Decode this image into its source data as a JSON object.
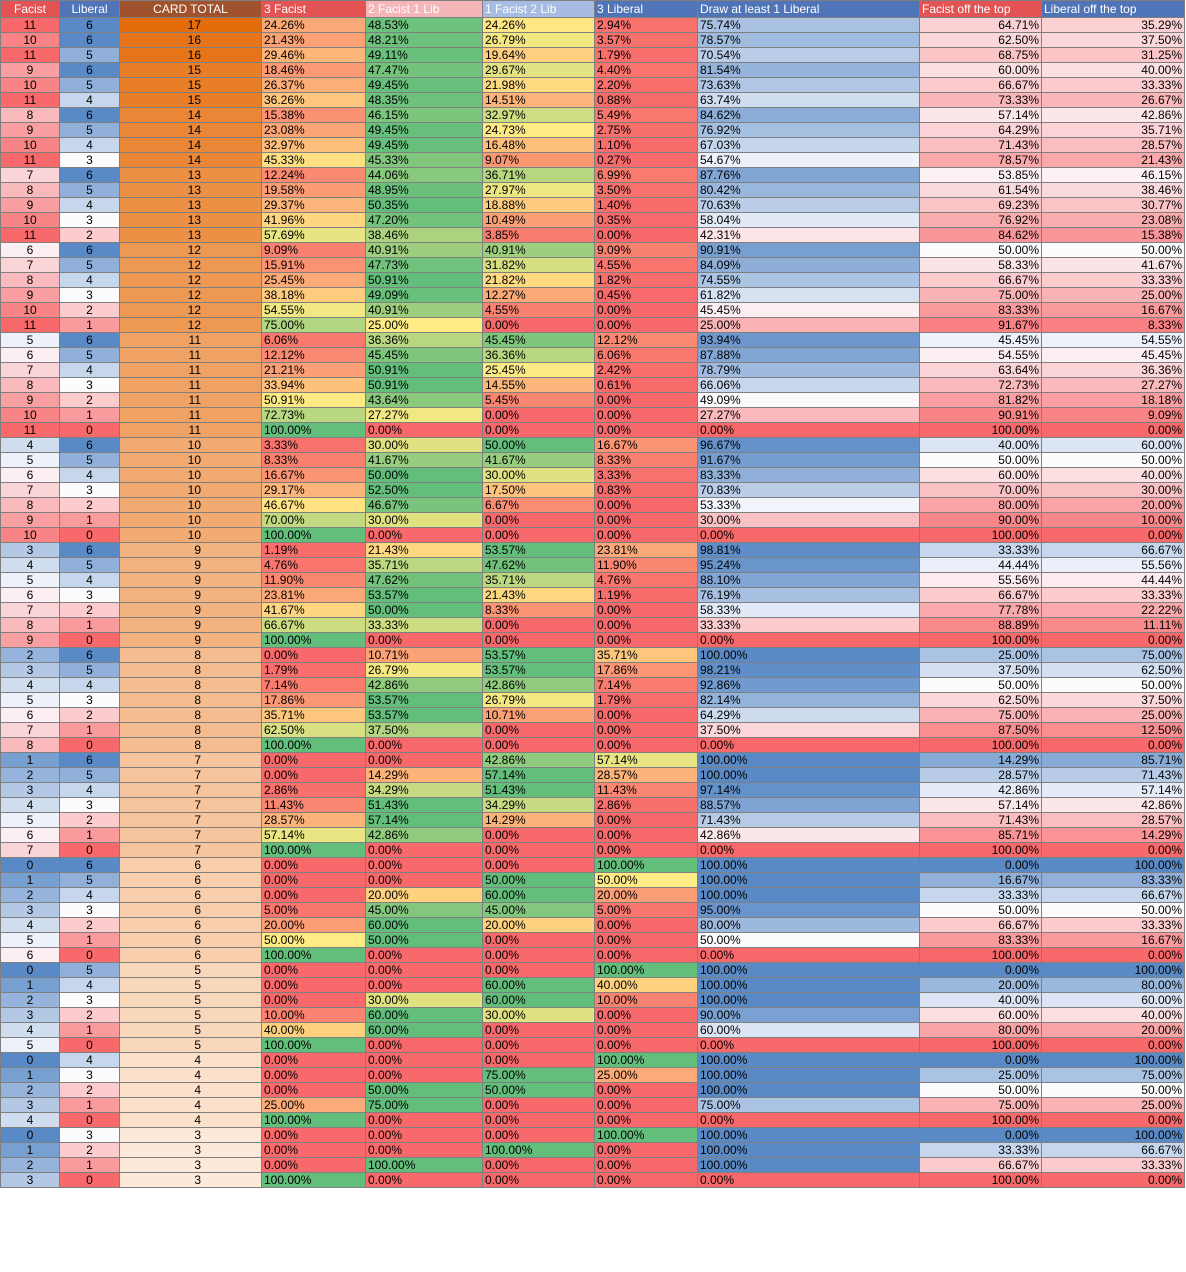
{
  "headers": [
    "Facist",
    "Liberal",
    "CARD TOTAL",
    "3 Facist",
    "2 Facist 1 Lib",
    "1 Facist 2 Lib",
    "3 Liberal",
    "Draw at least 1 Liberal",
    "Facist off the top",
    "Liberal off the top"
  ],
  "header_colors": [
    "#e35353",
    "#4f75b8",
    "#a0522d",
    "#e35353",
    "#f4b6b8",
    "#a7bce3",
    "#4f75b8",
    "#4f75b8",
    "#e35353",
    "#4f75b8"
  ],
  "rows": [
    [
      "11",
      "6",
      "17",
      "24.26%",
      "48.53%",
      "24.26%",
      "2.94%",
      "75.74%",
      "64.71%",
      "35.29%"
    ],
    [
      "10",
      "6",
      "16",
      "21.43%",
      "48.21%",
      "26.79%",
      "3.57%",
      "78.57%",
      "62.50%",
      "37.50%"
    ],
    [
      "11",
      "5",
      "16",
      "29.46%",
      "49.11%",
      "19.64%",
      "1.79%",
      "70.54%",
      "68.75%",
      "31.25%"
    ],
    [
      "9",
      "6",
      "15",
      "18.46%",
      "47.47%",
      "29.67%",
      "4.40%",
      "81.54%",
      "60.00%",
      "40.00%"
    ],
    [
      "10",
      "5",
      "15",
      "26.37%",
      "49.45%",
      "21.98%",
      "2.20%",
      "73.63%",
      "66.67%",
      "33.33%"
    ],
    [
      "11",
      "4",
      "15",
      "36.26%",
      "48.35%",
      "14.51%",
      "0.88%",
      "63.74%",
      "73.33%",
      "26.67%"
    ],
    [
      "8",
      "6",
      "14",
      "15.38%",
      "46.15%",
      "32.97%",
      "5.49%",
      "84.62%",
      "57.14%",
      "42.86%"
    ],
    [
      "9",
      "5",
      "14",
      "23.08%",
      "49.45%",
      "24.73%",
      "2.75%",
      "76.92%",
      "64.29%",
      "35.71%"
    ],
    [
      "10",
      "4",
      "14",
      "32.97%",
      "49.45%",
      "16.48%",
      "1.10%",
      "67.03%",
      "71.43%",
      "28.57%"
    ],
    [
      "11",
      "3",
      "14",
      "45.33%",
      "45.33%",
      "9.07%",
      "0.27%",
      "54.67%",
      "78.57%",
      "21.43%"
    ],
    [
      "7",
      "6",
      "13",
      "12.24%",
      "44.06%",
      "36.71%",
      "6.99%",
      "87.76%",
      "53.85%",
      "46.15%"
    ],
    [
      "8",
      "5",
      "13",
      "19.58%",
      "48.95%",
      "27.97%",
      "3.50%",
      "80.42%",
      "61.54%",
      "38.46%"
    ],
    [
      "9",
      "4",
      "13",
      "29.37%",
      "50.35%",
      "18.88%",
      "1.40%",
      "70.63%",
      "69.23%",
      "30.77%"
    ],
    [
      "10",
      "3",
      "13",
      "41.96%",
      "47.20%",
      "10.49%",
      "0.35%",
      "58.04%",
      "76.92%",
      "23.08%"
    ],
    [
      "11",
      "2",
      "13",
      "57.69%",
      "38.46%",
      "3.85%",
      "0.00%",
      "42.31%",
      "84.62%",
      "15.38%"
    ],
    [
      "6",
      "6",
      "12",
      "9.09%",
      "40.91%",
      "40.91%",
      "9.09%",
      "90.91%",
      "50.00%",
      "50.00%"
    ],
    [
      "7",
      "5",
      "12",
      "15.91%",
      "47.73%",
      "31.82%",
      "4.55%",
      "84.09%",
      "58.33%",
      "41.67%"
    ],
    [
      "8",
      "4",
      "12",
      "25.45%",
      "50.91%",
      "21.82%",
      "1.82%",
      "74.55%",
      "66.67%",
      "33.33%"
    ],
    [
      "9",
      "3",
      "12",
      "38.18%",
      "49.09%",
      "12.27%",
      "0.45%",
      "61.82%",
      "75.00%",
      "25.00%"
    ],
    [
      "10",
      "2",
      "12",
      "54.55%",
      "40.91%",
      "4.55%",
      "0.00%",
      "45.45%",
      "83.33%",
      "16.67%"
    ],
    [
      "11",
      "1",
      "12",
      "75.00%",
      "25.00%",
      "0.00%",
      "0.00%",
      "25.00%",
      "91.67%",
      "8.33%"
    ],
    [
      "5",
      "6",
      "11",
      "6.06%",
      "36.36%",
      "45.45%",
      "12.12%",
      "93.94%",
      "45.45%",
      "54.55%"
    ],
    [
      "6",
      "5",
      "11",
      "12.12%",
      "45.45%",
      "36.36%",
      "6.06%",
      "87.88%",
      "54.55%",
      "45.45%"
    ],
    [
      "7",
      "4",
      "11",
      "21.21%",
      "50.91%",
      "25.45%",
      "2.42%",
      "78.79%",
      "63.64%",
      "36.36%"
    ],
    [
      "8",
      "3",
      "11",
      "33.94%",
      "50.91%",
      "14.55%",
      "0.61%",
      "66.06%",
      "72.73%",
      "27.27%"
    ],
    [
      "9",
      "2",
      "11",
      "50.91%",
      "43.64%",
      "5.45%",
      "0.00%",
      "49.09%",
      "81.82%",
      "18.18%"
    ],
    [
      "10",
      "1",
      "11",
      "72.73%",
      "27.27%",
      "0.00%",
      "0.00%",
      "27.27%",
      "90.91%",
      "9.09%"
    ],
    [
      "11",
      "0",
      "11",
      "100.00%",
      "0.00%",
      "0.00%",
      "0.00%",
      "0.00%",
      "100.00%",
      "0.00%"
    ],
    [
      "4",
      "6",
      "10",
      "3.33%",
      "30.00%",
      "50.00%",
      "16.67%",
      "96.67%",
      "40.00%",
      "60.00%"
    ],
    [
      "5",
      "5",
      "10",
      "8.33%",
      "41.67%",
      "41.67%",
      "8.33%",
      "91.67%",
      "50.00%",
      "50.00%"
    ],
    [
      "6",
      "4",
      "10",
      "16.67%",
      "50.00%",
      "30.00%",
      "3.33%",
      "83.33%",
      "60.00%",
      "40.00%"
    ],
    [
      "7",
      "3",
      "10",
      "29.17%",
      "52.50%",
      "17.50%",
      "0.83%",
      "70.83%",
      "70.00%",
      "30.00%"
    ],
    [
      "8",
      "2",
      "10",
      "46.67%",
      "46.67%",
      "6.67%",
      "0.00%",
      "53.33%",
      "80.00%",
      "20.00%"
    ],
    [
      "9",
      "1",
      "10",
      "70.00%",
      "30.00%",
      "0.00%",
      "0.00%",
      "30.00%",
      "90.00%",
      "10.00%"
    ],
    [
      "10",
      "0",
      "10",
      "100.00%",
      "0.00%",
      "0.00%",
      "0.00%",
      "0.00%",
      "100.00%",
      "0.00%"
    ],
    [
      "3",
      "6",
      "9",
      "1.19%",
      "21.43%",
      "53.57%",
      "23.81%",
      "98.81%",
      "33.33%",
      "66.67%"
    ],
    [
      "4",
      "5",
      "9",
      "4.76%",
      "35.71%",
      "47.62%",
      "11.90%",
      "95.24%",
      "44.44%",
      "55.56%"
    ],
    [
      "5",
      "4",
      "9",
      "11.90%",
      "47.62%",
      "35.71%",
      "4.76%",
      "88.10%",
      "55.56%",
      "44.44%"
    ],
    [
      "6",
      "3",
      "9",
      "23.81%",
      "53.57%",
      "21.43%",
      "1.19%",
      "76.19%",
      "66.67%",
      "33.33%"
    ],
    [
      "7",
      "2",
      "9",
      "41.67%",
      "50.00%",
      "8.33%",
      "0.00%",
      "58.33%",
      "77.78%",
      "22.22%"
    ],
    [
      "8",
      "1",
      "9",
      "66.67%",
      "33.33%",
      "0.00%",
      "0.00%",
      "33.33%",
      "88.89%",
      "11.11%"
    ],
    [
      "9",
      "0",
      "9",
      "100.00%",
      "0.00%",
      "0.00%",
      "0.00%",
      "0.00%",
      "100.00%",
      "0.00%"
    ],
    [
      "2",
      "6",
      "8",
      "0.00%",
      "10.71%",
      "53.57%",
      "35.71%",
      "100.00%",
      "25.00%",
      "75.00%"
    ],
    [
      "3",
      "5",
      "8",
      "1.79%",
      "26.79%",
      "53.57%",
      "17.86%",
      "98.21%",
      "37.50%",
      "62.50%"
    ],
    [
      "4",
      "4",
      "8",
      "7.14%",
      "42.86%",
      "42.86%",
      "7.14%",
      "92.86%",
      "50.00%",
      "50.00%"
    ],
    [
      "5",
      "3",
      "8",
      "17.86%",
      "53.57%",
      "26.79%",
      "1.79%",
      "82.14%",
      "62.50%",
      "37.50%"
    ],
    [
      "6",
      "2",
      "8",
      "35.71%",
      "53.57%",
      "10.71%",
      "0.00%",
      "64.29%",
      "75.00%",
      "25.00%"
    ],
    [
      "7",
      "1",
      "8",
      "62.50%",
      "37.50%",
      "0.00%",
      "0.00%",
      "37.50%",
      "87.50%",
      "12.50%"
    ],
    [
      "8",
      "0",
      "8",
      "100.00%",
      "0.00%",
      "0.00%",
      "0.00%",
      "0.00%",
      "100.00%",
      "0.00%"
    ],
    [
      "1",
      "6",
      "7",
      "0.00%",
      "0.00%",
      "42.86%",
      "57.14%",
      "100.00%",
      "14.29%",
      "85.71%"
    ],
    [
      "2",
      "5",
      "7",
      "0.00%",
      "14.29%",
      "57.14%",
      "28.57%",
      "100.00%",
      "28.57%",
      "71.43%"
    ],
    [
      "3",
      "4",
      "7",
      "2.86%",
      "34.29%",
      "51.43%",
      "11.43%",
      "97.14%",
      "42.86%",
      "57.14%"
    ],
    [
      "4",
      "3",
      "7",
      "11.43%",
      "51.43%",
      "34.29%",
      "2.86%",
      "88.57%",
      "57.14%",
      "42.86%"
    ],
    [
      "5",
      "2",
      "7",
      "28.57%",
      "57.14%",
      "14.29%",
      "0.00%",
      "71.43%",
      "71.43%",
      "28.57%"
    ],
    [
      "6",
      "1",
      "7",
      "57.14%",
      "42.86%",
      "0.00%",
      "0.00%",
      "42.86%",
      "85.71%",
      "14.29%"
    ],
    [
      "7",
      "0",
      "7",
      "100.00%",
      "0.00%",
      "0.00%",
      "0.00%",
      "0.00%",
      "100.00%",
      "0.00%"
    ],
    [
      "0",
      "6",
      "6",
      "0.00%",
      "0.00%",
      "0.00%",
      "100.00%",
      "100.00%",
      "0.00%",
      "100.00%"
    ],
    [
      "1",
      "5",
      "6",
      "0.00%",
      "0.00%",
      "50.00%",
      "50.00%",
      "100.00%",
      "16.67%",
      "83.33%"
    ],
    [
      "2",
      "4",
      "6",
      "0.00%",
      "20.00%",
      "60.00%",
      "20.00%",
      "100.00%",
      "33.33%",
      "66.67%"
    ],
    [
      "3",
      "3",
      "6",
      "5.00%",
      "45.00%",
      "45.00%",
      "5.00%",
      "95.00%",
      "50.00%",
      "50.00%"
    ],
    [
      "4",
      "2",
      "6",
      "20.00%",
      "60.00%",
      "20.00%",
      "0.00%",
      "80.00%",
      "66.67%",
      "33.33%"
    ],
    [
      "5",
      "1",
      "6",
      "50.00%",
      "50.00%",
      "0.00%",
      "0.00%",
      "50.00%",
      "83.33%",
      "16.67%"
    ],
    [
      "6",
      "0",
      "6",
      "100.00%",
      "0.00%",
      "0.00%",
      "0.00%",
      "0.00%",
      "100.00%",
      "0.00%"
    ],
    [
      "0",
      "5",
      "5",
      "0.00%",
      "0.00%",
      "0.00%",
      "100.00%",
      "100.00%",
      "0.00%",
      "100.00%"
    ],
    [
      "1",
      "4",
      "5",
      "0.00%",
      "0.00%",
      "60.00%",
      "40.00%",
      "100.00%",
      "20.00%",
      "80.00%"
    ],
    [
      "2",
      "3",
      "5",
      "0.00%",
      "30.00%",
      "60.00%",
      "10.00%",
      "100.00%",
      "40.00%",
      "60.00%"
    ],
    [
      "3",
      "2",
      "5",
      "10.00%",
      "60.00%",
      "30.00%",
      "0.00%",
      "90.00%",
      "60.00%",
      "40.00%"
    ],
    [
      "4",
      "1",
      "5",
      "40.00%",
      "60.00%",
      "0.00%",
      "0.00%",
      "60.00%",
      "80.00%",
      "20.00%"
    ],
    [
      "5",
      "0",
      "5",
      "100.00%",
      "0.00%",
      "0.00%",
      "0.00%",
      "0.00%",
      "100.00%",
      "0.00%"
    ],
    [
      "0",
      "4",
      "4",
      "0.00%",
      "0.00%",
      "0.00%",
      "100.00%",
      "100.00%",
      "0.00%",
      "100.00%"
    ],
    [
      "1",
      "3",
      "4",
      "0.00%",
      "0.00%",
      "75.00%",
      "25.00%",
      "100.00%",
      "25.00%",
      "75.00%"
    ],
    [
      "2",
      "2",
      "4",
      "0.00%",
      "50.00%",
      "50.00%",
      "0.00%",
      "100.00%",
      "50.00%",
      "50.00%"
    ],
    [
      "3",
      "1",
      "4",
      "25.00%",
      "75.00%",
      "0.00%",
      "0.00%",
      "75.00%",
      "75.00%",
      "25.00%"
    ],
    [
      "4",
      "0",
      "4",
      "100.00%",
      "0.00%",
      "0.00%",
      "0.00%",
      "0.00%",
      "100.00%",
      "0.00%"
    ],
    [
      "0",
      "3",
      "3",
      "0.00%",
      "0.00%",
      "0.00%",
      "100.00%",
      "100.00%",
      "0.00%",
      "100.00%"
    ],
    [
      "1",
      "2",
      "3",
      "0.00%",
      "0.00%",
      "100.00%",
      "0.00%",
      "100.00%",
      "33.33%",
      "66.67%"
    ],
    [
      "2",
      "1",
      "3",
      "0.00%",
      "100.00%",
      "0.00%",
      "0.00%",
      "100.00%",
      "66.67%",
      "33.33%"
    ],
    [
      "3",
      "0",
      "3",
      "100.00%",
      "0.00%",
      "0.00%",
      "0.00%",
      "0.00%",
      "100.00%",
      "0.00%"
    ]
  ]
}
